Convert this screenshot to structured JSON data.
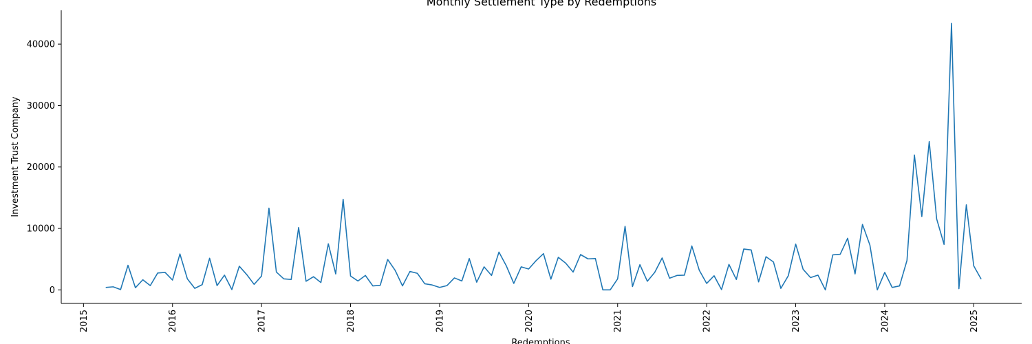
{
  "chart_data": {
    "type": "line",
    "title": "Monthly Settlement Type by Redemptions",
    "xlabel": "Redemptions",
    "ylabel": "Investment Trust Company",
    "x_tick_labels": [
      "2015",
      "2016",
      "2017",
      "2018",
      "2019",
      "2020",
      "2021",
      "2022",
      "2023",
      "2024",
      "2025"
    ],
    "y_ticks": [
      0,
      10000,
      20000,
      30000,
      40000
    ],
    "y_tick_labels": [
      "0",
      "10000",
      "20000",
      "30000",
      "40000"
    ],
    "xlim": [
      "2014-10-01",
      "2025-07-15"
    ],
    "ylim": [
      -2200,
      45500
    ],
    "grid": false,
    "line_color": "#1f77b4",
    "series": [
      {
        "x": [
          "2015-04",
          "2015-05",
          "2015-06",
          "2015-07",
          "2015-08",
          "2015-09",
          "2015-10",
          "2015-11",
          "2015-12",
          "2016-01",
          "2016-02",
          "2016-03",
          "2016-04",
          "2016-05",
          "2016-06",
          "2016-07",
          "2016-08",
          "2016-09",
          "2016-10",
          "2016-11",
          "2016-12",
          "2017-01",
          "2017-02",
          "2017-03",
          "2017-04",
          "2017-05",
          "2017-06",
          "2017-07",
          "2017-08",
          "2017-09",
          "2017-10",
          "2017-11",
          "2017-12",
          "2018-01",
          "2018-02",
          "2018-03",
          "2018-04",
          "2018-05",
          "2018-06",
          "2018-07",
          "2018-08",
          "2018-09",
          "2018-10",
          "2018-11",
          "2018-12",
          "2019-01",
          "2019-02",
          "2019-03",
          "2019-04",
          "2019-05",
          "2019-06",
          "2019-07",
          "2019-08",
          "2019-09",
          "2019-10",
          "2019-11",
          "2019-12",
          "2020-01",
          "2020-02",
          "2020-03",
          "2020-04",
          "2020-05",
          "2020-06",
          "2020-07",
          "2020-08",
          "2020-09",
          "2020-10",
          "2020-11",
          "2020-12",
          "2021-01",
          "2021-02",
          "2021-03",
          "2021-04",
          "2021-05",
          "2021-06",
          "2021-07",
          "2021-08",
          "2021-09",
          "2021-10",
          "2021-11",
          "2021-12",
          "2022-01",
          "2022-02",
          "2022-03",
          "2022-04",
          "2022-05",
          "2022-06",
          "2022-07",
          "2022-08",
          "2022-09",
          "2022-10",
          "2022-11",
          "2022-12",
          "2023-01",
          "2023-02",
          "2023-03",
          "2023-04",
          "2023-05",
          "2023-06",
          "2023-07",
          "2023-08",
          "2023-09",
          "2023-10",
          "2023-11",
          "2023-12",
          "2024-01",
          "2024-02",
          "2024-03",
          "2024-04",
          "2024-05",
          "2024-06",
          "2024-07",
          "2024-08",
          "2024-09",
          "2024-10",
          "2024-11",
          "2024-12",
          "2025-01",
          "2025-02"
        ],
        "values": [
          400,
          500,
          50,
          4000,
          350,
          1650,
          700,
          2750,
          2850,
          1600,
          5850,
          1800,
          250,
          850,
          5150,
          700,
          2400,
          50,
          3850,
          2500,
          900,
          2250,
          13300,
          2900,
          1800,
          1700,
          10150,
          1400,
          2150,
          1200,
          7500,
          2600,
          14750,
          2250,
          1450,
          2350,
          650,
          750,
          4950,
          3200,
          650,
          3000,
          2700,
          1000,
          800,
          400,
          700,
          1950,
          1450,
          5100,
          1250,
          3750,
          2350,
          6150,
          3900,
          1050,
          3750,
          3400,
          4750,
          5900,
          1750,
          5300,
          4350,
          2900,
          5750,
          5050,
          5100,
          0,
          0,
          1800,
          10350,
          550,
          4100,
          1400,
          2850,
          5200,
          1900,
          2350,
          2400,
          7150,
          3200,
          1050,
          2300,
          50,
          4150,
          1700,
          6650,
          6500,
          1300,
          5400,
          4550,
          250,
          2300,
          7450,
          3350,
          2000,
          2400,
          0,
          5700,
          5800,
          8400,
          2600,
          10650,
          7300,
          0,
          2850,
          400,
          650,
          4800,
          21950,
          11950,
          24150,
          11550,
          7400,
          43400,
          200,
          13850,
          3900,
          1750
        ]
      }
    ]
  }
}
